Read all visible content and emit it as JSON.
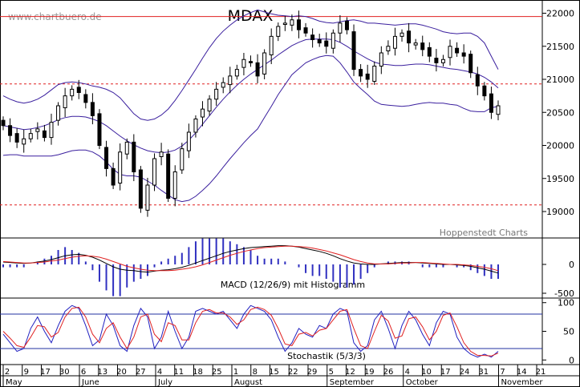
{
  "watermark": "www.chartbuero.de",
  "credit": "Hoppenstedt Charts",
  "chart_data": {
    "type": "candlestick",
    "title": "MDAX",
    "colors": {
      "bollinger": "#3a1f9e",
      "resistance": "#e02020",
      "macd": "#000000",
      "signal": "#e02020",
      "histogram": "#3030c0",
      "stoch_k": "#2020c0",
      "stoch_d": "#e02020",
      "stoch_level": "#2030a0"
    },
    "price_axis": {
      "ticks": [
        "22000",
        "21500",
        "21000",
        "20500",
        "20000",
        "19500",
        "19000"
      ],
      "min": 18600,
      "max": 22200
    },
    "x_axis": {
      "day_labels": [
        "2",
        "9",
        "17",
        "30",
        "6",
        "13",
        "20",
        "27",
        "4",
        "11",
        "18",
        "25",
        "1",
        "8",
        "15",
        "22",
        "29",
        "5",
        "12",
        "19",
        "26",
        "4",
        "10",
        "17",
        "24",
        "31",
        "7",
        "14",
        "21"
      ],
      "month_labels": [
        "May",
        "June",
        "July",
        "August",
        "September",
        "October",
        "November"
      ]
    },
    "reference_lines": {
      "solid": [
        21950
      ],
      "dashed": [
        20930,
        19100
      ]
    },
    "series": [
      {
        "name": "Close",
        "values": [
          20300,
          20150,
          20050,
          20100,
          20180,
          20250,
          20120,
          20350,
          20600,
          20750,
          20850,
          20800,
          20650,
          20450,
          20000,
          19650,
          19400,
          19900,
          20050,
          19600,
          19050,
          19400,
          19800,
          19900,
          19200,
          19600,
          19950,
          20200,
          20400,
          20550,
          20700,
          20850,
          20950,
          21050,
          21150,
          21300,
          21250,
          21050,
          21400,
          21650,
          21800,
          21850,
          21900,
          21750,
          21700,
          21600,
          21550,
          21500,
          21700,
          21850,
          21750,
          21150,
          21050,
          21000,
          21200,
          21400,
          21500,
          21650,
          21700,
          21550,
          21550,
          21450,
          21350,
          21250,
          21300,
          21500,
          21400,
          21350,
          21100,
          20900,
          20750,
          20500,
          20600
        ]
      },
      {
        "name": "Upper Bollinger",
        "values": [
          20750,
          20700,
          20660,
          20640,
          20660,
          20700,
          20760,
          20840,
          20920,
          20950,
          20960,
          20950,
          20930,
          20900,
          20880,
          20850,
          20800,
          20720,
          20600,
          20480,
          20400,
          20380,
          20400,
          20460,
          20550,
          20680,
          20830,
          20990,
          21150,
          21320,
          21480,
          21620,
          21730,
          21820,
          21900,
          21960,
          22010,
          22050,
          22020,
          21990,
          21970,
          21960,
          21950,
          21960,
          21950,
          21920,
          21880,
          21860,
          21850,
          21870,
          21890,
          21900,
          21880,
          21850,
          21850,
          21840,
          21830,
          21820,
          21830,
          21840,
          21840,
          21820,
          21790,
          21760,
          21720,
          21700,
          21690,
          21700,
          21700,
          21650,
          21550,
          21350,
          21150
        ]
      },
      {
        "name": "Middle Bollinger",
        "values": [
          20300,
          20280,
          20260,
          20240,
          20250,
          20270,
          20300,
          20340,
          20390,
          20420,
          20440,
          20440,
          20430,
          20400,
          20360,
          20300,
          20220,
          20140,
          20070,
          20010,
          19960,
          19920,
          19900,
          19890,
          19900,
          19930,
          19990,
          20080,
          20190,
          20320,
          20450,
          20580,
          20700,
          20810,
          20910,
          21000,
          21080,
          21150,
          21220,
          21290,
          21370,
          21440,
          21510,
          21560,
          21600,
          21610,
          21610,
          21610,
          21600,
          21560,
          21500,
          21430,
          21370,
          21310,
          21260,
          21230,
          21220,
          21210,
          21210,
          21220,
          21230,
          21230,
          21220,
          21200,
          21180,
          21160,
          21150,
          21130,
          21110,
          21080,
          21030,
          20960,
          20870
        ]
      },
      {
        "name": "Lower Bollinger",
        "values": [
          19850,
          19860,
          19860,
          19840,
          19840,
          19840,
          19840,
          19840,
          19860,
          19890,
          19920,
          19930,
          19930,
          19900,
          19840,
          19750,
          19640,
          19560,
          19540,
          19540,
          19520,
          19460,
          19400,
          19320,
          19250,
          19180,
          19150,
          19170,
          19230,
          19320,
          19420,
          19540,
          19670,
          19800,
          19920,
          20040,
          20150,
          20250,
          20420,
          20590,
          20770,
          20920,
          21070,
          21160,
          21250,
          21300,
          21340,
          21360,
          21350,
          21250,
          21110,
          20960,
          20860,
          20770,
          20670,
          20620,
          20610,
          20600,
          20590,
          20600,
          20620,
          20640,
          20650,
          20640,
          20640,
          20620,
          20610,
          20560,
          20520,
          20510,
          20510,
          20570,
          20590
        ]
      },
      {
        "name": "MACD",
        "values": [
          0.05,
          0.04,
          0.03,
          0.02,
          0.03,
          0.05,
          0.07,
          0.1,
          0.14,
          0.18,
          0.2,
          0.21,
          0.19,
          0.15,
          0.09,
          0.02,
          -0.05,
          -0.1,
          -0.12,
          -0.13,
          -0.15,
          -0.16,
          -0.14,
          -0.12,
          -0.11,
          -0.09,
          -0.06,
          -0.02,
          0.03,
          0.08,
          0.13,
          0.18,
          0.23,
          0.27,
          0.3,
          0.33,
          0.35,
          0.36,
          0.37,
          0.38,
          0.39,
          0.39,
          0.38,
          0.36,
          0.33,
          0.3,
          0.27,
          0.23,
          0.18,
          0.12,
          0.07,
          0.03,
          0.01,
          0.0,
          0.0,
          0.01,
          0.02,
          0.03,
          0.04,
          0.04,
          0.04,
          0.03,
          0.02,
          0.01,
          0.0,
          0.0,
          -0.01,
          -0.02,
          -0.04,
          -0.07,
          -0.1,
          -0.14,
          -0.18
        ]
      },
      {
        "name": "Signal",
        "values": [
          0.06,
          0.05,
          0.04,
          0.03,
          0.03,
          0.04,
          0.05,
          0.07,
          0.09,
          0.12,
          0.15,
          0.17,
          0.18,
          0.17,
          0.15,
          0.11,
          0.06,
          0.01,
          -0.04,
          -0.07,
          -0.1,
          -0.12,
          -0.13,
          -0.13,
          -0.13,
          -0.12,
          -0.1,
          -0.08,
          -0.05,
          -0.01,
          0.04,
          0.09,
          0.14,
          0.19,
          0.23,
          0.27,
          0.3,
          0.33,
          0.35,
          0.36,
          0.37,
          0.38,
          0.38,
          0.37,
          0.36,
          0.34,
          0.31,
          0.28,
          0.24,
          0.2,
          0.15,
          0.1,
          0.06,
          0.03,
          0.01,
          0.01,
          0.01,
          0.02,
          0.03,
          0.03,
          0.04,
          0.04,
          0.03,
          0.02,
          0.01,
          0.0,
          0.0,
          -0.01,
          -0.02,
          -0.04,
          -0.06,
          -0.09,
          -0.13
        ]
      },
      {
        "name": "Stoch %K",
        "values": [
          45,
          30,
          15,
          20,
          55,
          75,
          50,
          30,
          60,
          85,
          95,
          90,
          60,
          25,
          35,
          80,
          60,
          25,
          15,
          60,
          90,
          75,
          20,
          40,
          85,
          50,
          20,
          40,
          85,
          90,
          85,
          80,
          85,
          70,
          55,
          80,
          95,
          90,
          85,
          70,
          40,
          15,
          30,
          55,
          45,
          40,
          60,
          55,
          80,
          90,
          85,
          30,
          15,
          25,
          70,
          85,
          55,
          20,
          60,
          85,
          70,
          45,
          25,
          65,
          85,
          80,
          40,
          20,
          10,
          5,
          10,
          5,
          15
        ]
      },
      {
        "name": "Stoch %D",
        "values": [
          50,
          38,
          25,
          22,
          40,
          60,
          58,
          40,
          48,
          75,
          90,
          92,
          75,
          45,
          30,
          55,
          65,
          40,
          20,
          40,
          75,
          80,
          45,
          32,
          65,
          60,
          35,
          35,
          65,
          85,
          88,
          82,
          82,
          75,
          62,
          70,
          88,
          92,
          88,
          78,
          55,
          28,
          25,
          45,
          48,
          42,
          52,
          55,
          70,
          85,
          88,
          55,
          25,
          20,
          50,
          78,
          68,
          38,
          42,
          72,
          75,
          58,
          35,
          50,
          78,
          82,
          58,
          30,
          15,
          8,
          8,
          7,
          12
        ]
      }
    ],
    "indicators": {
      "macd": {
        "label": "MACD (12/26/9) mit Histogramm",
        "ticks": [
          "0",
          "-500"
        ],
        "min": -0.7,
        "max": 0.55
      },
      "stochastic": {
        "label": "Stochastik (5/3/3)",
        "ticks": [
          "100",
          "50",
          "0"
        ],
        "levels": [
          80,
          20
        ],
        "min": -8,
        "max": 108
      }
    }
  }
}
